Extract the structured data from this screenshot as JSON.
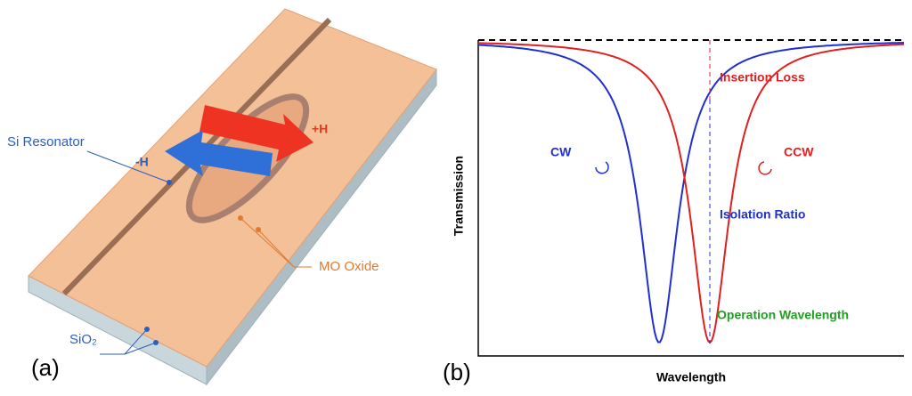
{
  "panel_a": {
    "label": "(a)",
    "si_resonator": "Si Resonator",
    "minus_h": "-H",
    "plus_h": "+H",
    "mo_oxide": "MO Oxide",
    "sio2": "SiO₂"
  },
  "panel_b": {
    "label": "(b)",
    "y_axis_label": "Transmission",
    "x_axis_label": "Wavelength",
    "annotations": {
      "insertion_loss": "Insertion Loss",
      "cw": "CW",
      "ccw": "CCW",
      "isolation_ratio": "Isolation Ratio",
      "operation_wavelength": "Operation Wavelength"
    }
  }
}
